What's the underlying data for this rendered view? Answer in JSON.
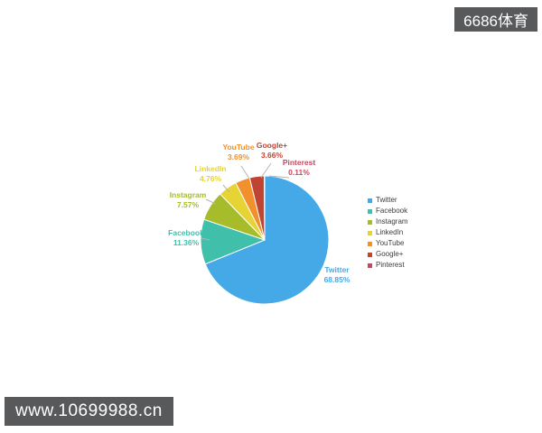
{
  "overlays": {
    "watermark_top_right": "6686体育",
    "watermark_bottom_left": "www.10699988.cn"
  },
  "chart_data": {
    "type": "pie",
    "title": "",
    "legend_position": "right",
    "start_angle_deg": 0,
    "direction": "clockwise",
    "series": [
      {
        "name": "Twitter",
        "value": 68.85,
        "pct_label": "68.85%",
        "color": "#45a9e8"
      },
      {
        "name": "Facebook",
        "value": 11.36,
        "pct_label": "11.36%",
        "color": "#40bfab"
      },
      {
        "name": "Instagram",
        "value": 7.57,
        "pct_label": "7.57%",
        "color": "#a6bc2a"
      },
      {
        "name": "LinkedIn",
        "value": 4.76,
        "pct_label": "4.76%",
        "color": "#e6d334"
      },
      {
        "name": "YouTube",
        "value": 3.69,
        "pct_label": "3.69%",
        "color": "#f1902d"
      },
      {
        "name": "Google+",
        "value": 3.66,
        "pct_label": "3.66%",
        "color": "#c04432"
      },
      {
        "name": "Pinterest",
        "value": 0.11,
        "pct_label": "0.11%",
        "color": "#c44760"
      }
    ]
  }
}
